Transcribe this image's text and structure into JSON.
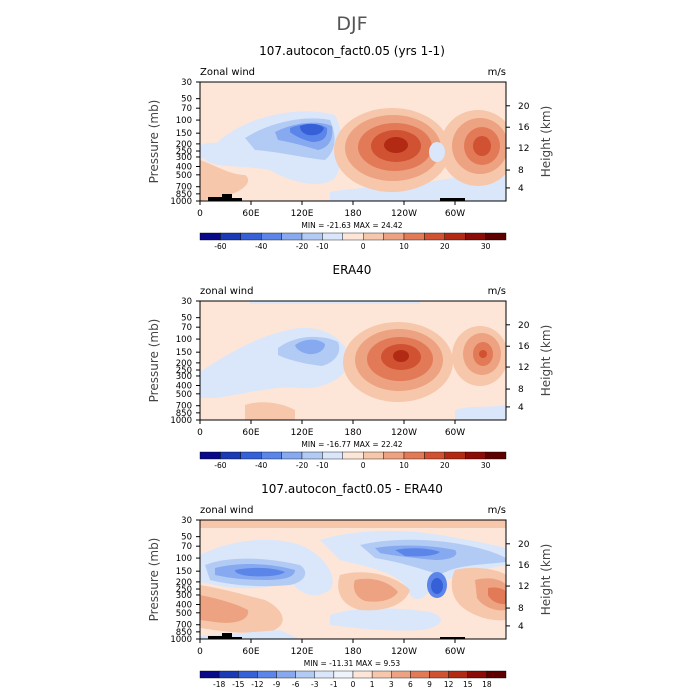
{
  "figure": {
    "title": "DJF",
    "shared_xticks": [
      "0",
      "60E",
      "120E",
      "180",
      "120W",
      "60W"
    ],
    "shared_yticks": [
      "30",
      "50",
      "70",
      "100",
      "150",
      "200",
      "250",
      "300",
      "400",
      "500",
      "700",
      "850",
      "1000"
    ],
    "shared_heightticks": [
      "20",
      "16",
      "12",
      "8",
      "4"
    ]
  },
  "chart_data": [
    {
      "type": "heatmap",
      "title": "107.autocon_fact0.05 (yrs 1-1)",
      "left_label": "Zonal wind",
      "units_label": "m/s",
      "ylabel": "Pressure (mb)",
      "y2label": "Height (km)",
      "xlabel": "",
      "xlim": [
        0,
        360
      ],
      "ylim": [
        1000,
        30
      ],
      "stats": "MIN = -21.63   MAX =  24.42",
      "min": -21.63,
      "max": 24.42,
      "levels": [
        "-60",
        "-40",
        "-20",
        "-10",
        "0",
        "10",
        "20",
        "30"
      ],
      "colors": [
        "#08088a",
        "#1a3bb5",
        "#3560d8",
        "#5b85e8",
        "#86a9f0",
        "#b2cbf5",
        "#dae6fa",
        "#fde6d8",
        "#f6c7ab",
        "#eda281",
        "#e27a58",
        "#d05232",
        "#b22a14",
        "#8b0b06",
        "#5e0000"
      ],
      "features": [
        {
          "lon": 100,
          "lev": 130,
          "value": -21.63
        },
        {
          "lon": 230,
          "lev": 200,
          "value": 24.42
        },
        {
          "lon": 320,
          "lev": 200,
          "value": 20
        },
        {
          "lon": 30,
          "lev": 400,
          "value": 8
        }
      ]
    },
    {
      "type": "heatmap",
      "title": "ERA40",
      "left_label": "zonal wind",
      "units_label": "m/s",
      "ylabel": "Pressure (mb)",
      "y2label": "Height (km)",
      "xlabel": "",
      "xlim": [
        0,
        360
      ],
      "ylim": [
        1000,
        30
      ],
      "stats": "MIN = -16.77   MAX =  22.42",
      "min": -16.77,
      "max": 22.42,
      "levels": [
        "-60",
        "-40",
        "-20",
        "-10",
        "0",
        "10",
        "20",
        "30"
      ],
      "colors": [
        "#08088a",
        "#1a3bb5",
        "#3560d8",
        "#5b85e8",
        "#86a9f0",
        "#b2cbf5",
        "#dae6fa",
        "#fde6d8",
        "#f6c7ab",
        "#eda281",
        "#e27a58",
        "#d05232",
        "#b22a14",
        "#8b0b06",
        "#5e0000"
      ],
      "features": [
        {
          "lon": 120,
          "lev": 120,
          "value": -16.77
        },
        {
          "lon": 235,
          "lev": 180,
          "value": 22.42
        },
        {
          "lon": 330,
          "lev": 170,
          "value": 15
        }
      ]
    },
    {
      "type": "heatmap",
      "title": "107.autocon_fact0.05 - ERA40",
      "left_label": "zonal wind",
      "units_label": "m/s",
      "ylabel": "Pressure (mb)",
      "y2label": "Height (km)",
      "xlabel": "",
      "xlim": [
        0,
        360
      ],
      "ylim": [
        1000,
        30
      ],
      "stats": "MIN = -11.31   MAX =    9.53",
      "min": -11.31,
      "max": 9.53,
      "levels": [
        "-18",
        "-15",
        "-12",
        "-9",
        "-6",
        "-3",
        "-1",
        "0",
        "1",
        "3",
        "6",
        "9",
        "12",
        "15",
        "18"
      ],
      "colors": [
        "#08088a",
        "#1a3bb5",
        "#3560d8",
        "#5b85e8",
        "#86a9f0",
        "#b2cbf5",
        "#dae6fa",
        "#eef3fc",
        "#fde6d8",
        "#f6c7ab",
        "#eda281",
        "#e27a58",
        "#d05232",
        "#b22a14",
        "#8b0b06",
        "#5e0000"
      ],
      "features": [
        {
          "lon": 280,
          "lev": 200,
          "value": -11.31
        },
        {
          "lon": 60,
          "lev": 150,
          "value": -7
        },
        {
          "lon": 220,
          "lev": 80,
          "value": -6
        },
        {
          "lon": 350,
          "lev": 250,
          "value": 9.53
        },
        {
          "lon": 220,
          "lev": 250,
          "value": 5
        }
      ]
    }
  ]
}
